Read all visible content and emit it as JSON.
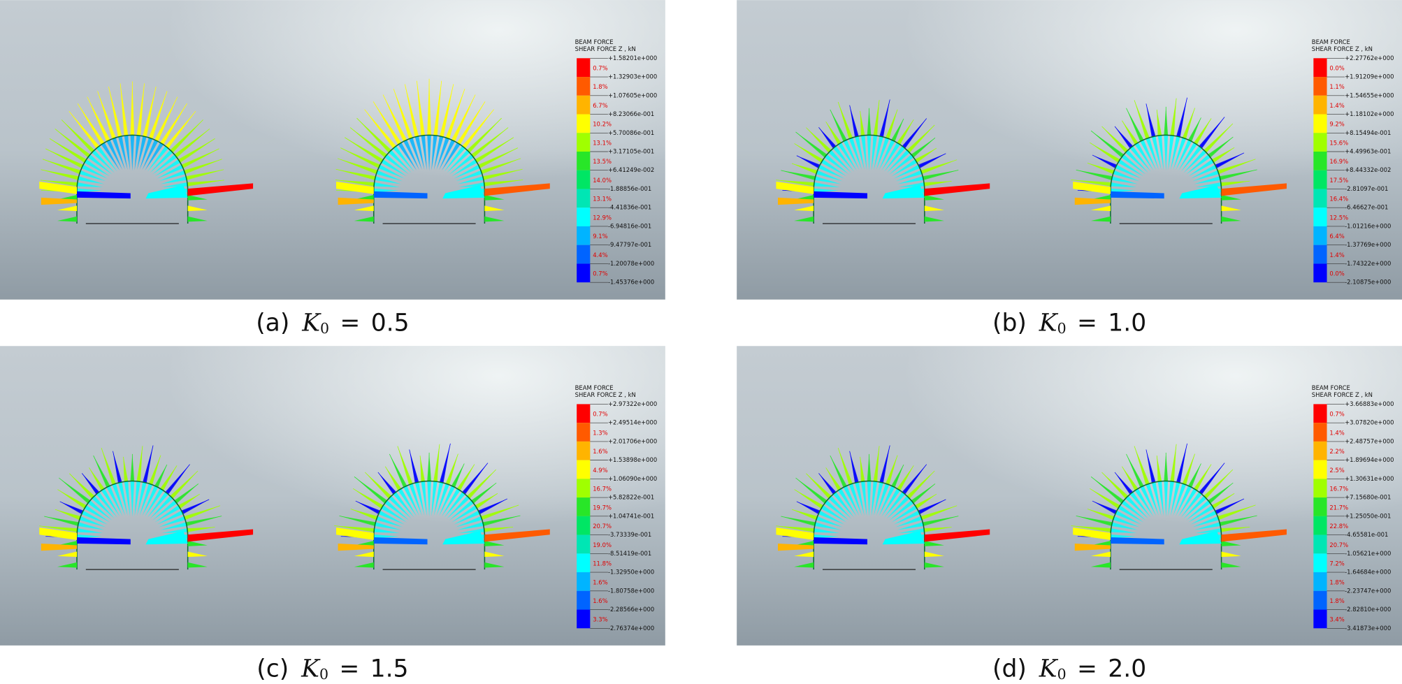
{
  "legend_colors": [
    "#ff0000",
    "#ff5a00",
    "#ffb400",
    "#ffff00",
    "#a0ff00",
    "#28e628",
    "#00e664",
    "#00e6b4",
    "#00ffff",
    "#00b4ff",
    "#0064ff",
    "#0000ff"
  ],
  "panels": [
    {
      "caption": {
        "label": "(a)",
        "symbol": "K",
        "subscript": "0",
        "equals": "=",
        "value": "0.5"
      },
      "legend": {
        "title_line1": "BEAM FORCE",
        "title_line2": "SHEAR FORCE Z , kN",
        "ticks": [
          "+1.58201e+000",
          "+1.32903e+000",
          "+1.07605e+000",
          "+8.23066e-001",
          "+5.70086e-001",
          "+3.17105e-001",
          "+6.41249e-002",
          "-1.88856e-001",
          "-4.41836e-001",
          "-6.94816e-001",
          "-9.47797e-001",
          "-1.20078e+000",
          "-1.45376e+000"
        ],
        "percentages": [
          "0.7%",
          "1.8%",
          "6.7%",
          "10.2%",
          "13.1%",
          "13.5%",
          "14.0%",
          "13.1%",
          "12.9%",
          "9.1%",
          "4.4%",
          "0.7%"
        ]
      }
    },
    {
      "caption": {
        "label": "(b)",
        "symbol": "K",
        "subscript": "0",
        "equals": "=",
        "value": "1.0"
      },
      "legend": {
        "title_line1": "BEAM FORCE",
        "title_line2": "SHEAR FORCE Z , kN",
        "ticks": [
          "+2.27762e+000",
          "+1.91209e+000",
          "+1.54655e+000",
          "+1.18102e+000",
          "+8.15494e-001",
          "+4.49963e-001",
          "+8.44332e-002",
          "-2.81097e-001",
          "-6.46627e-001",
          "-1.01216e+000",
          "-1.37769e+000",
          "-1.74322e+000",
          "-2.10875e+000"
        ],
        "percentages": [
          "0.0%",
          "1.1%",
          "1.4%",
          "9.2%",
          "15.6%",
          "16.9%",
          "17.5%",
          "16.4%",
          "12.5%",
          "6.4%",
          "1.4%",
          "0.0%"
        ]
      }
    },
    {
      "caption": {
        "label": "(c)",
        "symbol": "K",
        "subscript": "0",
        "equals": "=",
        "value": "1.5"
      },
      "legend": {
        "title_line1": "BEAM FORCE",
        "title_line2": "SHEAR FORCE Z , kN",
        "ticks": [
          "+2.97322e+000",
          "+2.49514e+000",
          "+2.01706e+000",
          "+1.53898e+000",
          "+1.06090e+000",
          "+5.82822e-001",
          "+1.04741e-001",
          "-3.73339e-001",
          "-8.51419e-001",
          "-1.32950e+000",
          "-1.80758e+000",
          "-2.28566e+000",
          "-2.76374e+000"
        ],
        "percentages": [
          "0.7%",
          "1.3%",
          "1.6%",
          "4.9%",
          "16.7%",
          "19.7%",
          "20.7%",
          "19.0%",
          "11.8%",
          "1.6%",
          "1.6%",
          "3.3%"
        ]
      }
    },
    {
      "caption": {
        "label": "(d)",
        "symbol": "K",
        "subscript": "0",
        "equals": "=",
        "value": "2.0"
      },
      "legend": {
        "title_line1": "BEAM FORCE",
        "title_line2": "SHEAR FORCE Z , kN",
        "ticks": [
          "+3.66883e+000",
          "+3.07820e+000",
          "+2.48757e+000",
          "+1.89694e+000",
          "+1.30631e+000",
          "+7.15680e-001",
          "+1.25050e-001",
          "-4.65581e-001",
          "-1.05621e+000",
          "-1.64684e+000",
          "-2.23747e+000",
          "-2.82810e+000",
          "-3.41873e+000"
        ],
        "percentages": [
          "0.7%",
          "1.4%",
          "2.2%",
          "2.5%",
          "16.7%",
          "21.7%",
          "22.8%",
          "20.7%",
          "7.2%",
          "1.8%",
          "1.8%",
          "3.4%"
        ]
      }
    }
  ]
}
